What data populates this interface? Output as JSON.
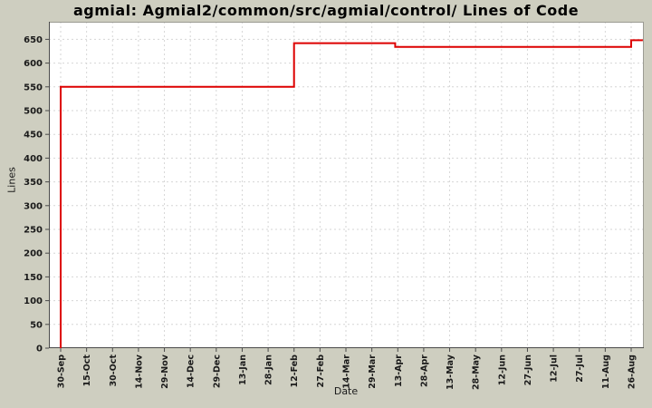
{
  "chart_data": {
    "type": "line",
    "subtype": "step",
    "title": "agmial: Agmial2/common/src/agmial/control/ Lines of Code",
    "xlabel": "Date",
    "ylabel": "Lines",
    "legend": "none",
    "grid": true,
    "x_tick_labels": [
      "30-Sep",
      "15-Oct",
      "30-Oct",
      "14-Nov",
      "29-Nov",
      "14-Dec",
      "29-Dec",
      "13-Jan",
      "28-Jan",
      "12-Feb",
      "27-Feb",
      "14-Mar",
      "29-Mar",
      "13-Apr",
      "28-Apr",
      "13-May",
      "28-May",
      "12-Jun",
      "27-Jun",
      "12-Jul",
      "27-Jul",
      "11-Aug",
      "26-Aug"
    ],
    "y_ticks": [
      0,
      50,
      100,
      150,
      200,
      250,
      300,
      350,
      400,
      450,
      500,
      550,
      600,
      650
    ],
    "ylim": [
      0,
      687
    ],
    "series": [
      {
        "name": "lines-of-code",
        "color": "#dd0000",
        "points": [
          {
            "x": 0,
            "y": 0,
            "note": "rise at 30-Sep"
          },
          {
            "x": 0,
            "y": 550
          },
          {
            "x": 9,
            "y": 550,
            "note": "flat at 550 until 12-Feb"
          },
          {
            "x": 9,
            "y": 642
          },
          {
            "x": 12.9,
            "y": 642,
            "note": "flat ~640 until 13-Apr"
          },
          {
            "x": 12.9,
            "y": 634
          },
          {
            "x": 22,
            "y": 634,
            "note": "flat ~635 until 26-Aug"
          },
          {
            "x": 22,
            "y": 648
          },
          {
            "x": 22.45,
            "y": 648,
            "note": "ends ~648 at right edge"
          }
        ]
      }
    ],
    "colors": {
      "background": "#cecec0",
      "plot_background": "#ffffff",
      "gridline": "#d6d6d6",
      "plot_border": "#9b9b93",
      "axis_line": "#4a4a4a",
      "text": "#1a1a1a",
      "series_red": "#dd0000"
    }
  }
}
